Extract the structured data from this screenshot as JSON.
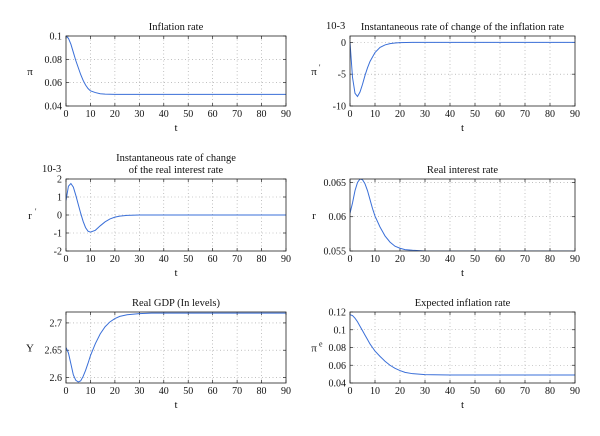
{
  "chart_data": [
    {
      "id": "inflation",
      "type": "line",
      "title": [
        "Inflation rate"
      ],
      "scale_label": "",
      "xlabel": "t",
      "ylabel": "π",
      "ylabel_sup": "",
      "xlim": [
        0,
        90
      ],
      "ylim": [
        0.04,
        0.1
      ],
      "xticks": [
        "0",
        "10",
        "20",
        "30",
        "40",
        "50",
        "60",
        "70",
        "80",
        "90"
      ],
      "yticks": [
        {
          "v": 0.04,
          "label": "0.04"
        },
        {
          "v": 0.06,
          "label": "0.06"
        },
        {
          "v": 0.08,
          "label": "0.08"
        },
        {
          "v": 0.1,
          "label": "0.1"
        }
      ],
      "grid": true,
      "series_color": "#3a6fd8",
      "x": [
        0,
        1,
        2,
        3,
        4,
        5,
        6,
        7,
        8,
        9,
        10,
        12,
        14,
        16,
        18,
        20,
        25,
        30,
        40,
        50,
        60,
        70,
        80,
        90
      ],
      "y": [
        0.1,
        0.098,
        0.093,
        0.086,
        0.079,
        0.073,
        0.067,
        0.062,
        0.058,
        0.055,
        0.053,
        0.0515,
        0.0505,
        0.0502,
        0.0501,
        0.05,
        0.05,
        0.05,
        0.05,
        0.05,
        0.05,
        0.05,
        0.05,
        0.05
      ]
    },
    {
      "id": "inflation-change",
      "type": "line",
      "title": [
        "Instantaneous rate of change of the inflation rate"
      ],
      "scale_label": "10-3",
      "xlabel": "t",
      "ylabel": "π",
      "ylabel_sup": "'",
      "xlim": [
        0,
        90
      ],
      "ylim": [
        -10,
        1
      ],
      "xticks": [
        "0",
        "10",
        "20",
        "30",
        "40",
        "50",
        "60",
        "70",
        "80",
        "90"
      ],
      "yticks": [
        {
          "v": -10,
          "label": "-10"
        },
        {
          "v": -5,
          "label": "-5"
        },
        {
          "v": 0,
          "label": "0"
        }
      ],
      "grid": true,
      "series_color": "#3a6fd8",
      "x": [
        0,
        1,
        2,
        3,
        4,
        5,
        6,
        7,
        8,
        10,
        12,
        14,
        16,
        18,
        20,
        25,
        30,
        40,
        50,
        60,
        70,
        80,
        90
      ],
      "y": [
        0,
        -5.5,
        -8.0,
        -8.5,
        -7.8,
        -6.6,
        -5.2,
        -4.0,
        -3.0,
        -1.6,
        -0.8,
        -0.4,
        -0.2,
        -0.1,
        -0.05,
        0,
        0,
        0,
        0,
        0,
        0,
        0,
        0
      ]
    },
    {
      "id": "real-interest-change",
      "type": "line",
      "title": [
        "Instantaneous rate of change",
        "of the real interest rate"
      ],
      "scale_label": "10-3",
      "xlabel": "t",
      "ylabel": "r",
      "ylabel_sup": "'",
      "xlim": [
        0,
        90
      ],
      "ylim": [
        -2,
        2
      ],
      "xticks": [
        "0",
        "10",
        "20",
        "30",
        "40",
        "50",
        "60",
        "70",
        "80",
        "90"
      ],
      "yticks": [
        {
          "v": -2,
          "label": "-2"
        },
        {
          "v": -1,
          "label": "-1"
        },
        {
          "v": 0,
          "label": "0"
        },
        {
          "v": 1,
          "label": "1"
        },
        {
          "v": 2,
          "label": "2"
        }
      ],
      "grid": true,
      "series_color": "#3a6fd8",
      "x": [
        0,
        1,
        2,
        3,
        4,
        5,
        6,
        7,
        8,
        9,
        10,
        12,
        14,
        16,
        18,
        20,
        22,
        25,
        30,
        40,
        50,
        60,
        70,
        80,
        90
      ],
      "y": [
        0.8,
        1.6,
        1.75,
        1.55,
        1.1,
        0.6,
        0.1,
        -0.35,
        -0.7,
        -0.9,
        -0.95,
        -0.85,
        -0.6,
        -0.38,
        -0.22,
        -0.12,
        -0.06,
        -0.02,
        0,
        0,
        0,
        0,
        0,
        0,
        0
      ]
    },
    {
      "id": "real-interest",
      "type": "line",
      "title": [
        "Real interest rate"
      ],
      "scale_label": "",
      "xlabel": "t",
      "ylabel": "r",
      "ylabel_sup": "",
      "xlim": [
        0,
        90
      ],
      "ylim": [
        0.055,
        0.0655
      ],
      "xticks": [
        "0",
        "10",
        "20",
        "30",
        "40",
        "50",
        "60",
        "70",
        "80",
        "90"
      ],
      "yticks": [
        {
          "v": 0.055,
          "label": "0.055"
        },
        {
          "v": 0.06,
          "label": "0.06"
        },
        {
          "v": 0.065,
          "label": "0.065"
        }
      ],
      "grid": true,
      "series_color": "#3a6fd8",
      "x": [
        0,
        1,
        2,
        3,
        4,
        5,
        6,
        7,
        8,
        9,
        10,
        12,
        14,
        16,
        18,
        20,
        22,
        25,
        30,
        40,
        50,
        60,
        70,
        80,
        90
      ],
      "y": [
        0.0605,
        0.062,
        0.0638,
        0.065,
        0.0655,
        0.0654,
        0.0648,
        0.0638,
        0.0625,
        0.0612,
        0.0601,
        0.0585,
        0.0572,
        0.0563,
        0.0557,
        0.0554,
        0.0552,
        0.0551,
        0.055,
        0.055,
        0.055,
        0.055,
        0.055,
        0.055,
        0.055
      ]
    },
    {
      "id": "real-gdp",
      "type": "line",
      "title": [
        "Real GDP (In levels)"
      ],
      "scale_label": "",
      "xlabel": "t",
      "ylabel": "Y",
      "ylabel_sup": "",
      "xlim": [
        0,
        90
      ],
      "ylim": [
        2.59,
        2.72
      ],
      "xticks": [
        "0",
        "10",
        "20",
        "30",
        "40",
        "50",
        "60",
        "70",
        "80",
        "90"
      ],
      "yticks": [
        {
          "v": 2.6,
          "label": "2.6"
        },
        {
          "v": 2.65,
          "label": "2.65"
        },
        {
          "v": 2.7,
          "label": "2.7"
        }
      ],
      "grid": true,
      "series_color": "#3a6fd8",
      "x": [
        0,
        1,
        2,
        3,
        4,
        5,
        6,
        7,
        8,
        9,
        10,
        12,
        14,
        16,
        18,
        20,
        22,
        25,
        30,
        35,
        40,
        50,
        60,
        70,
        80,
        90
      ],
      "y": [
        2.655,
        2.645,
        2.625,
        2.605,
        2.595,
        2.592,
        2.594,
        2.602,
        2.613,
        2.626,
        2.64,
        2.662,
        2.68,
        2.693,
        2.702,
        2.708,
        2.712,
        2.715,
        2.717,
        2.718,
        2.718,
        2.718,
        2.718,
        2.718,
        2.718,
        2.718
      ]
    },
    {
      "id": "expected-inflation",
      "type": "line",
      "title": [
        "Expected inflation rate"
      ],
      "scale_label": "",
      "xlabel": "t",
      "ylabel": "π",
      "ylabel_sup": "e",
      "xlim": [
        0,
        90
      ],
      "ylim": [
        0.04,
        0.12
      ],
      "xticks": [
        "0",
        "10",
        "20",
        "30",
        "40",
        "50",
        "60",
        "70",
        "80",
        "90"
      ],
      "yticks": [
        {
          "v": 0.04,
          "label": "0.04"
        },
        {
          "v": 0.06,
          "label": "0.06"
        },
        {
          "v": 0.08,
          "label": "0.08"
        },
        {
          "v": 0.1,
          "label": "0.1"
        },
        {
          "v": 0.12,
          "label": "0.12"
        }
      ],
      "grid": true,
      "series_color": "#3a6fd8",
      "x": [
        0,
        1,
        2,
        3,
        4,
        5,
        6,
        7,
        8,
        9,
        10,
        12,
        14,
        16,
        18,
        20,
        22,
        25,
        30,
        40,
        50,
        60,
        70,
        80,
        90
      ],
      "y": [
        0.117,
        0.116,
        0.113,
        0.109,
        0.104,
        0.099,
        0.094,
        0.089,
        0.084,
        0.08,
        0.076,
        0.07,
        0.0645,
        0.06,
        0.0565,
        0.054,
        0.052,
        0.0505,
        0.0495,
        0.049,
        0.049,
        0.049,
        0.049,
        0.049,
        0.049
      ]
    }
  ]
}
